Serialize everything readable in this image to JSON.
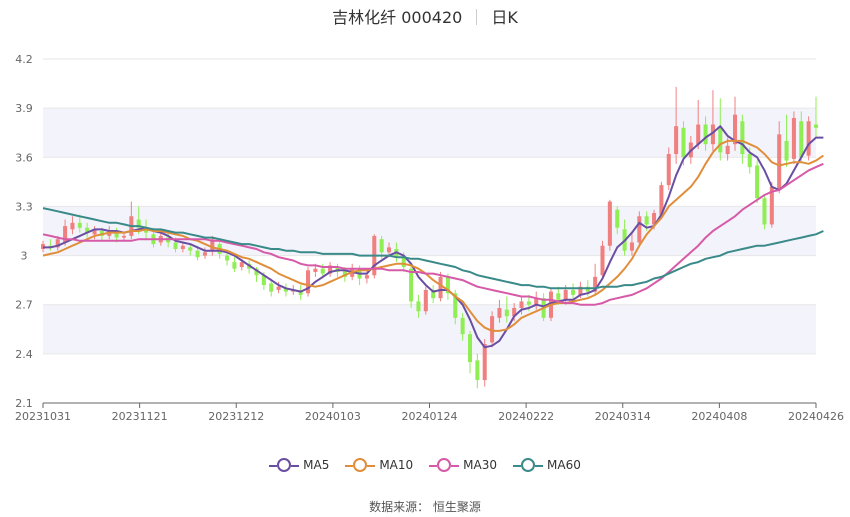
{
  "header": {
    "title": "吉林化纤 000420",
    "period": "日K"
  },
  "footer": {
    "source": "数据来源： 恒生聚源"
  },
  "chart_data": {
    "type": "candlestick",
    "y_ticks": [
      "4.2",
      "3.9",
      "3.6",
      "3.3",
      "3",
      "2.7",
      "2.4",
      "2.1"
    ],
    "ylim": [
      2.1,
      4.2
    ],
    "x_ticks": [
      "20231031",
      "20231121",
      "20231212",
      "20240103",
      "20240124",
      "20240222",
      "20240314",
      "20240408",
      "20240426"
    ],
    "colors": {
      "up": "#f08080",
      "down": "#90ee55",
      "grid": "#e6e6e6",
      "band": "#f3f4fb"
    },
    "candles": [
      [
        3.04,
        3.07,
        3.02,
        3.09
      ],
      [
        3.06,
        3.05,
        3.03,
        3.1
      ],
      [
        3.05,
        3.1,
        3.03,
        3.12
      ],
      [
        3.08,
        3.18,
        3.06,
        3.22
      ],
      [
        3.16,
        3.2,
        3.13,
        3.24
      ],
      [
        3.2,
        3.17,
        3.14,
        3.25
      ],
      [
        3.17,
        3.14,
        3.11,
        3.2
      ],
      [
        3.13,
        3.16,
        3.1,
        3.18
      ],
      [
        3.15,
        3.12,
        3.09,
        3.17
      ],
      [
        3.12,
        3.15,
        3.1,
        3.18
      ],
      [
        3.14,
        3.11,
        3.08,
        3.17
      ],
      [
        3.11,
        3.12,
        3.09,
        3.14
      ],
      [
        3.12,
        3.24,
        3.1,
        3.33
      ],
      [
        3.22,
        3.17,
        3.13,
        3.3
      ],
      [
        3.17,
        3.14,
        3.1,
        3.22
      ],
      [
        3.13,
        3.07,
        3.05,
        3.17
      ],
      [
        3.08,
        3.12,
        3.06,
        3.15
      ],
      [
        3.11,
        3.08,
        3.05,
        3.14
      ],
      [
        3.08,
        3.04,
        3.02,
        3.11
      ],
      [
        3.04,
        3.06,
        3.02,
        3.08
      ],
      [
        3.05,
        3.03,
        3.0,
        3.07
      ],
      [
        3.03,
        2.99,
        2.97,
        3.06
      ],
      [
        3.0,
        3.02,
        2.98,
        3.05
      ],
      [
        3.03,
        3.1,
        3.0,
        3.12
      ],
      [
        3.07,
        3.01,
        2.98,
        3.09
      ],
      [
        3.0,
        2.97,
        2.94,
        3.03
      ],
      [
        2.96,
        2.92,
        2.9,
        2.99
      ],
      [
        2.93,
        2.96,
        2.91,
        2.98
      ],
      [
        2.95,
        2.92,
        2.89,
        2.97
      ],
      [
        2.92,
        2.88,
        2.84,
        2.93
      ],
      [
        2.88,
        2.82,
        2.79,
        2.9
      ],
      [
        2.83,
        2.78,
        2.75,
        2.86
      ],
      [
        2.79,
        2.81,
        2.77,
        2.84
      ],
      [
        2.8,
        2.78,
        2.75,
        2.83
      ],
      [
        2.78,
        2.79,
        2.76,
        2.82
      ],
      [
        2.79,
        2.76,
        2.73,
        2.82
      ],
      [
        2.77,
        2.91,
        2.75,
        2.93
      ],
      [
        2.9,
        2.92,
        2.87,
        2.95
      ],
      [
        2.92,
        2.89,
        2.86,
        2.95
      ],
      [
        2.89,
        2.94,
        2.87,
        2.96
      ],
      [
        2.93,
        2.9,
        2.87,
        2.95
      ],
      [
        2.91,
        2.87,
        2.84,
        2.93
      ],
      [
        2.87,
        2.92,
        2.85,
        2.95
      ],
      [
        2.92,
        2.86,
        2.82,
        2.94
      ],
      [
        2.86,
        2.88,
        2.83,
        2.91
      ],
      [
        2.88,
        3.12,
        2.86,
        3.13
      ],
      [
        3.1,
        3.02,
        2.98,
        3.12
      ],
      [
        3.02,
        3.05,
        2.99,
        3.08
      ],
      [
        3.04,
        2.99,
        2.96,
        3.08
      ],
      [
        2.99,
        2.93,
        2.9,
        3.02
      ],
      [
        2.92,
        2.72,
        2.68,
        2.94
      ],
      [
        2.72,
        2.66,
        2.62,
        2.76
      ],
      [
        2.66,
        2.79,
        2.64,
        2.81
      ],
      [
        2.79,
        2.74,
        2.71,
        2.82
      ],
      [
        2.74,
        2.87,
        2.72,
        2.9
      ],
      [
        2.87,
        2.77,
        2.73,
        2.89
      ],
      [
        2.77,
        2.62,
        2.58,
        2.79
      ],
      [
        2.62,
        2.52,
        2.48,
        2.65
      ],
      [
        2.52,
        2.35,
        2.28,
        2.54
      ],
      [
        2.36,
        2.24,
        2.19,
        2.4
      ],
      [
        2.24,
        2.46,
        2.2,
        2.49
      ],
      [
        2.47,
        2.63,
        2.44,
        2.66
      ],
      [
        2.62,
        2.68,
        2.59,
        2.73
      ],
      [
        2.67,
        2.63,
        2.59,
        2.75
      ],
      [
        2.63,
        2.68,
        2.6,
        2.71
      ],
      [
        2.68,
        2.72,
        2.64,
        2.75
      ],
      [
        2.72,
        2.7,
        2.66,
        2.76
      ],
      [
        2.7,
        2.74,
        2.67,
        2.78
      ],
      [
        2.74,
        2.62,
        2.6,
        2.77
      ],
      [
        2.62,
        2.78,
        2.6,
        2.8
      ],
      [
        2.77,
        2.73,
        2.7,
        2.81
      ],
      [
        2.73,
        2.79,
        2.7,
        2.82
      ],
      [
        2.79,
        2.76,
        2.73,
        2.83
      ],
      [
        2.76,
        2.81,
        2.74,
        2.84
      ],
      [
        2.81,
        2.78,
        2.75,
        2.85
      ],
      [
        2.78,
        2.87,
        2.76,
        2.95
      ],
      [
        2.88,
        3.06,
        2.86,
        3.09
      ],
      [
        3.06,
        3.33,
        3.03,
        3.34
      ],
      [
        3.28,
        3.17,
        3.13,
        3.3
      ],
      [
        3.16,
        3.03,
        3.0,
        3.22
      ],
      [
        3.03,
        3.08,
        3.0,
        3.14
      ],
      [
        3.08,
        3.24,
        3.05,
        3.27
      ],
      [
        3.24,
        3.19,
        3.15,
        3.27
      ],
      [
        3.19,
        3.26,
        3.16,
        3.28
      ],
      [
        3.25,
        3.43,
        3.23,
        3.45
      ],
      [
        3.43,
        3.62,
        3.4,
        3.66
      ],
      [
        3.62,
        3.79,
        3.56,
        4.03
      ],
      [
        3.78,
        3.6,
        3.55,
        3.82
      ],
      [
        3.6,
        3.69,
        3.56,
        3.73
      ],
      [
        3.68,
        3.8,
        3.65,
        3.95
      ],
      [
        3.8,
        3.68,
        3.64,
        3.85
      ],
      [
        3.68,
        3.8,
        3.64,
        4.01
      ],
      [
        3.78,
        3.63,
        3.58,
        3.96
      ],
      [
        3.62,
        3.67,
        3.58,
        3.72
      ],
      [
        3.68,
        3.86,
        3.64,
        3.97
      ],
      [
        3.82,
        3.62,
        3.56,
        3.86
      ],
      [
        3.62,
        3.54,
        3.5,
        3.66
      ],
      [
        3.55,
        3.35,
        3.32,
        3.58
      ],
      [
        3.35,
        3.19,
        3.16,
        3.37
      ],
      [
        3.19,
        3.42,
        3.17,
        3.45
      ],
      [
        3.4,
        3.74,
        3.38,
        3.82
      ],
      [
        3.7,
        3.58,
        3.54,
        3.86
      ],
      [
        3.59,
        3.84,
        3.56,
        3.88
      ],
      [
        3.82,
        3.6,
        3.57,
        3.88
      ],
      [
        3.61,
        3.82,
        3.58,
        3.85
      ],
      [
        3.8,
        3.78,
        3.72,
        3.97
      ]
    ],
    "series": [
      {
        "name": "MA5",
        "color": "#6a4ea3",
        "values": [
          3.05,
          3.05,
          3.06,
          3.08,
          3.1,
          3.12,
          3.14,
          3.16,
          3.16,
          3.15,
          3.15,
          3.14,
          3.15,
          3.16,
          3.17,
          3.15,
          3.14,
          3.12,
          3.09,
          3.08,
          3.07,
          3.05,
          3.03,
          3.03,
          3.03,
          3.02,
          3.0,
          2.97,
          2.94,
          2.91,
          2.88,
          2.85,
          2.82,
          2.8,
          2.79,
          2.78,
          2.8,
          2.84,
          2.87,
          2.9,
          2.91,
          2.91,
          2.9,
          2.89,
          2.89,
          2.94,
          2.97,
          3.0,
          3.02,
          3.0,
          2.95,
          2.87,
          2.82,
          2.78,
          2.79,
          2.79,
          2.75,
          2.7,
          2.61,
          2.5,
          2.44,
          2.45,
          2.48,
          2.55,
          2.63,
          2.67,
          2.68,
          2.7,
          2.69,
          2.71,
          2.72,
          2.73,
          2.73,
          2.76,
          2.77,
          2.79,
          2.86,
          2.96,
          3.05,
          3.09,
          3.14,
          3.2,
          3.17,
          3.18,
          3.25,
          3.36,
          3.49,
          3.59,
          3.64,
          3.68,
          3.72,
          3.75,
          3.79,
          3.73,
          3.7,
          3.68,
          3.63,
          3.6,
          3.52,
          3.42,
          3.4,
          3.44,
          3.52,
          3.6,
          3.68,
          3.72,
          3.72
        ]
      },
      {
        "name": "MA10",
        "color": "#e08e3a",
        "values": [
          3.0,
          3.01,
          3.02,
          3.04,
          3.06,
          3.08,
          3.1,
          3.12,
          3.13,
          3.14,
          3.14,
          3.14,
          3.15,
          3.15,
          3.16,
          3.15,
          3.15,
          3.14,
          3.13,
          3.12,
          3.1,
          3.09,
          3.07,
          3.05,
          3.04,
          3.03,
          3.01,
          2.99,
          2.98,
          2.96,
          2.94,
          2.92,
          2.89,
          2.87,
          2.85,
          2.83,
          2.82,
          2.81,
          2.82,
          2.84,
          2.86,
          2.88,
          2.9,
          2.91,
          2.91,
          2.92,
          2.93,
          2.94,
          2.95,
          2.95,
          2.94,
          2.92,
          2.89,
          2.85,
          2.82,
          2.79,
          2.75,
          2.72,
          2.66,
          2.6,
          2.56,
          2.54,
          2.54,
          2.55,
          2.58,
          2.62,
          2.64,
          2.66,
          2.68,
          2.7,
          2.71,
          2.71,
          2.72,
          2.73,
          2.74,
          2.76,
          2.79,
          2.83,
          2.87,
          2.92,
          2.98,
          3.06,
          3.13,
          3.18,
          3.23,
          3.3,
          3.34,
          3.38,
          3.42,
          3.48,
          3.56,
          3.63,
          3.68,
          3.7,
          3.7,
          3.7,
          3.68,
          3.66,
          3.62,
          3.57,
          3.55,
          3.56,
          3.57,
          3.57,
          3.56,
          3.58,
          3.61
        ]
      },
      {
        "name": "MA30",
        "color": "#d65aa8",
        "values": [
          3.13,
          3.12,
          3.11,
          3.1,
          3.1,
          3.09,
          3.09,
          3.09,
          3.09,
          3.09,
          3.09,
          3.09,
          3.09,
          3.1,
          3.1,
          3.1,
          3.1,
          3.1,
          3.1,
          3.1,
          3.1,
          3.1,
          3.1,
          3.09,
          3.09,
          3.08,
          3.07,
          3.06,
          3.05,
          3.04,
          3.02,
          3.01,
          2.99,
          2.98,
          2.97,
          2.95,
          2.94,
          2.94,
          2.93,
          2.93,
          2.93,
          2.92,
          2.92,
          2.92,
          2.92,
          2.92,
          2.92,
          2.91,
          2.91,
          2.91,
          2.9,
          2.9,
          2.89,
          2.89,
          2.88,
          2.87,
          2.86,
          2.85,
          2.83,
          2.81,
          2.8,
          2.79,
          2.78,
          2.77,
          2.76,
          2.75,
          2.75,
          2.74,
          2.73,
          2.73,
          2.72,
          2.71,
          2.71,
          2.7,
          2.7,
          2.7,
          2.71,
          2.73,
          2.74,
          2.75,
          2.76,
          2.78,
          2.8,
          2.83,
          2.86,
          2.9,
          2.94,
          2.98,
          3.02,
          3.06,
          3.11,
          3.15,
          3.18,
          3.21,
          3.24,
          3.28,
          3.31,
          3.34,
          3.37,
          3.39,
          3.4,
          3.43,
          3.46,
          3.49,
          3.52,
          3.54,
          3.56
        ]
      },
      {
        "name": "MA60",
        "color": "#3a8a8a",
        "values": [
          3.29,
          3.28,
          3.27,
          3.26,
          3.25,
          3.24,
          3.23,
          3.22,
          3.21,
          3.2,
          3.2,
          3.19,
          3.18,
          3.18,
          3.17,
          3.16,
          3.16,
          3.15,
          3.14,
          3.14,
          3.13,
          3.12,
          3.11,
          3.11,
          3.1,
          3.09,
          3.08,
          3.07,
          3.07,
          3.06,
          3.05,
          3.04,
          3.04,
          3.03,
          3.03,
          3.02,
          3.02,
          3.02,
          3.01,
          3.01,
          3.01,
          3.01,
          3.01,
          3.0,
          3.0,
          3.0,
          3.0,
          3.0,
          2.99,
          2.99,
          2.98,
          2.98,
          2.97,
          2.96,
          2.95,
          2.94,
          2.93,
          2.91,
          2.9,
          2.88,
          2.87,
          2.86,
          2.85,
          2.84,
          2.83,
          2.82,
          2.82,
          2.81,
          2.81,
          2.8,
          2.8,
          2.8,
          2.8,
          2.8,
          2.8,
          2.8,
          2.81,
          2.81,
          2.81,
          2.82,
          2.82,
          2.83,
          2.84,
          2.86,
          2.87,
          2.89,
          2.91,
          2.93,
          2.95,
          2.96,
          2.98,
          2.99,
          3.0,
          3.02,
          3.03,
          3.04,
          3.05,
          3.06,
          3.06,
          3.07,
          3.08,
          3.09,
          3.1,
          3.11,
          3.12,
          3.13,
          3.15
        ]
      }
    ],
    "legend": [
      "MA5",
      "MA10",
      "MA30",
      "MA60"
    ],
    "legend_position": "bottom"
  }
}
